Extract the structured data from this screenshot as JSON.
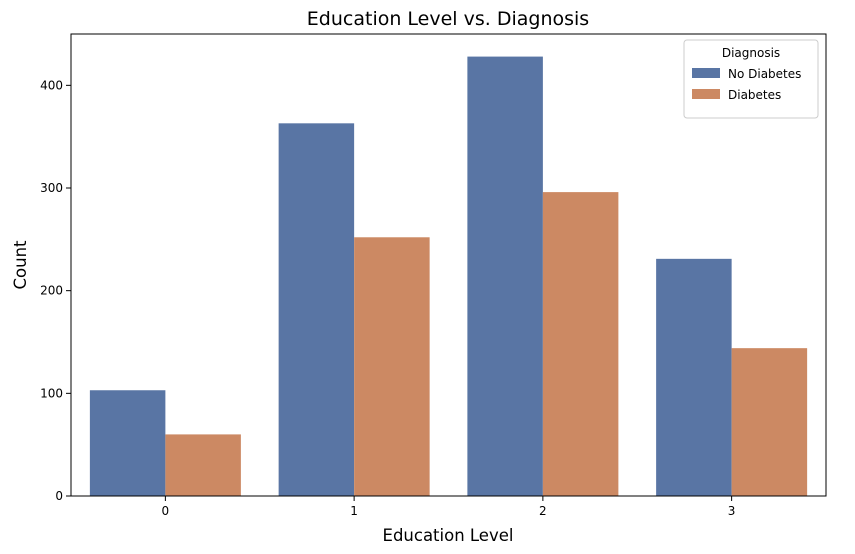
{
  "chart_data": {
    "type": "bar",
    "title": "Education Level vs. Diagnosis",
    "xlabel": "Education Level",
    "ylabel": "Count",
    "categories": [
      "0",
      "1",
      "2",
      "3"
    ],
    "series": [
      {
        "name": "No Diabetes",
        "color": "#5975a4",
        "values": [
          103,
          363,
          428,
          231
        ]
      },
      {
        "name": "Diabetes",
        "color": "#cc8963",
        "values": [
          60,
          252,
          296,
          144
        ]
      }
    ],
    "ylim": [
      0,
      450
    ],
    "yticks": [
      0,
      100,
      200,
      300,
      400
    ],
    "legend": {
      "title": "Diagnosis",
      "position": "top-right"
    },
    "grid": false
  }
}
